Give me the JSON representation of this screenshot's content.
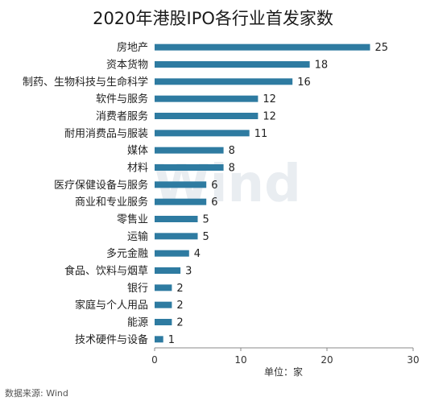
{
  "chart_data": {
    "type": "bar",
    "orientation": "horizontal",
    "title": "2020年港股IPO各行业首发家数",
    "categories": [
      "房地产",
      "资本货物",
      "制药、生物科技与生命科学",
      "软件与服务",
      "消费者服务",
      "耐用消费品与服装",
      "媒体",
      "材料",
      "医疗保健设备与服务",
      "商业和专业服务",
      "零售业",
      "运输",
      "多元金融",
      "食品、饮料与烟草",
      "银行",
      "家庭与个人用品",
      "能源",
      "技术硬件与设备"
    ],
    "values": [
      25,
      18,
      16,
      12,
      12,
      11,
      8,
      8,
      6,
      6,
      5,
      5,
      4,
      3,
      2,
      2,
      2,
      1
    ],
    "xlabel": "单位：家",
    "ylabel": "",
    "xlim": [
      0,
      30
    ],
    "xticks": [
      0,
      10,
      20,
      30
    ],
    "bar_color": "#2e7ba1",
    "grid": false,
    "legend": "none"
  },
  "source": "数据来源: Wind",
  "watermark": "Wind"
}
